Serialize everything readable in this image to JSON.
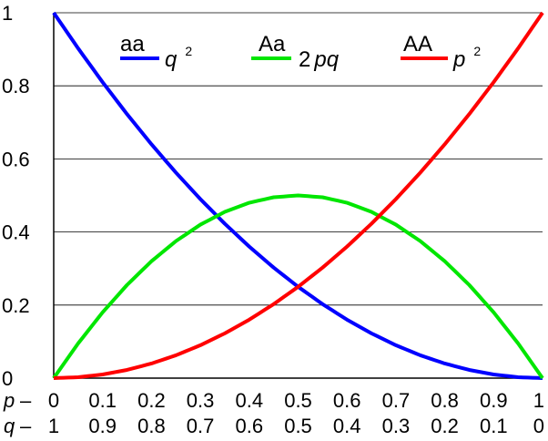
{
  "chart_data": {
    "type": "line",
    "x_rows": [
      {
        "var": "p",
        "dash": "–",
        "ticks": [
          "0",
          "0.1",
          "0.2",
          "0.3",
          "0.4",
          "0.5",
          "0.6",
          "0.7",
          "0.8",
          "0.9",
          "1"
        ]
      },
      {
        "var": "q",
        "dash": "–",
        "ticks": [
          "1",
          "0.9",
          "0.8",
          "0.7",
          "0.6",
          "0.5",
          "0.4",
          "0.3",
          "0.2",
          "0.1",
          "0"
        ]
      }
    ],
    "y_ticks": [
      "0",
      "0.2",
      "0.4",
      "0.6",
      "0.8",
      "1"
    ],
    "xlim": [
      0,
      1
    ],
    "ylim": [
      0,
      1
    ],
    "grid": "horizontal",
    "legend_position": "top",
    "x": [
      0,
      0.05,
      0.1,
      0.15,
      0.2,
      0.25,
      0.3,
      0.35,
      0.4,
      0.45,
      0.5,
      0.55,
      0.6,
      0.65,
      0.7,
      0.75,
      0.8,
      0.85,
      0.9,
      0.95,
      1
    ],
    "series": [
      {
        "name": "aa",
        "expr": "q",
        "sup": "2",
        "color": "#0000ff",
        "values": [
          1,
          0.9025,
          0.81,
          0.7225,
          0.64,
          0.5625,
          0.49,
          0.4225,
          0.36,
          0.3025,
          0.25,
          0.2025,
          0.16,
          0.1225,
          0.09,
          0.0625,
          0.04,
          0.0225,
          0.01,
          0.0025,
          0
        ]
      },
      {
        "name": "Aa",
        "coef": "2",
        "expr": "pq",
        "sup": "",
        "color": "#00e600",
        "values": [
          0,
          0.095,
          0.18,
          0.255,
          0.32,
          0.375,
          0.42,
          0.455,
          0.48,
          0.495,
          0.5,
          0.495,
          0.48,
          0.455,
          0.42,
          0.375,
          0.32,
          0.255,
          0.18,
          0.095,
          0
        ]
      },
      {
        "name": "AA",
        "expr": "p",
        "sup": "2",
        "color": "#ff0000",
        "values": [
          0,
          0.0025,
          0.01,
          0.0225,
          0.04,
          0.0625,
          0.09,
          0.1225,
          0.16,
          0.2025,
          0.25,
          0.3025,
          0.36,
          0.4225,
          0.49,
          0.5625,
          0.64,
          0.7225,
          0.81,
          0.9025,
          1
        ]
      }
    ]
  }
}
